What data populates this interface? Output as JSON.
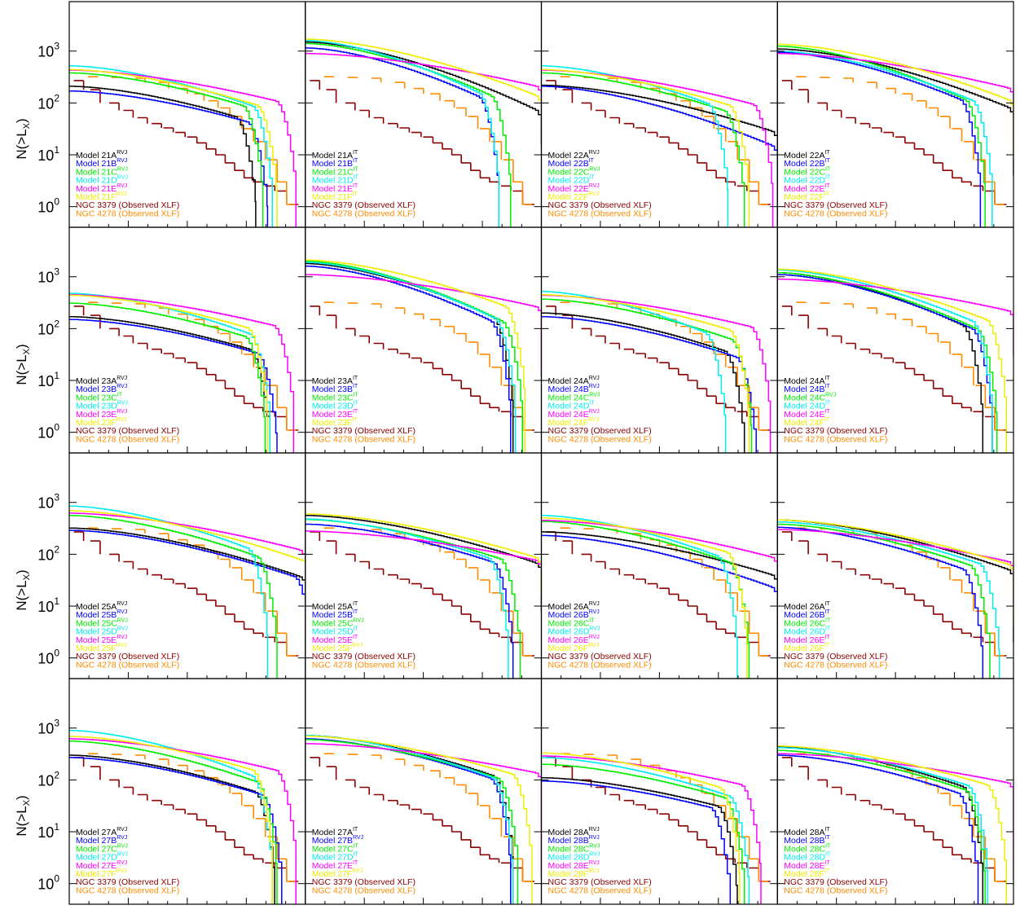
{
  "y_axis_label": {
    "main": "N(>L",
    "sub": "X",
    "close": ")"
  },
  "y_tick_labels": [
    {
      "base": "10",
      "exp": "3",
      "value": 1000
    },
    {
      "base": "10",
      "exp": "2",
      "value": 100
    },
    {
      "base": "10",
      "exp": "1",
      "value": 10
    },
    {
      "base": "10",
      "exp": "0",
      "value": 1
    }
  ],
  "series_colors": {
    "A": "#000000",
    "B": "#0000ff",
    "C": "#00ee00",
    "D": "#00eeee",
    "E": "#ff00ff",
    "F": "#eeee00",
    "ngc3379": "#8b0000",
    "ngc4278": "#ff8c00"
  },
  "observed_labels": {
    "ngc3379": "NGC 3379 (Observed XLF)",
    "ngc4278": "NGC 4278 (Observed XLF)"
  },
  "chart_data": {
    "type": "line",
    "layout": "grid 4x4",
    "yscale": "log",
    "ylim": [
      0.4,
      9000
    ],
    "xlim": [
      0,
      1
    ],
    "x_tick_labels_visible": false,
    "observed": {
      "ngc3379": {
        "x": [
          0.04,
          0.11,
          0.19,
          0.25,
          0.31,
          0.37,
          0.42,
          0.47,
          0.52,
          0.56,
          0.6,
          0.64,
          0.68,
          0.72,
          0.76,
          0.8,
          0.85,
          0.9,
          0.95
        ],
        "y": [
          270,
          180,
          100,
          72,
          52,
          40,
          33,
          27,
          22,
          17,
          13,
          10,
          7,
          5,
          3.6,
          3,
          2.5,
          2,
          1.1
        ]
      },
      "ngc4278": {
        "x": [
          0.1,
          0.2,
          0.3,
          0.4,
          0.48,
          0.55,
          0.61,
          0.66,
          0.71,
          0.76,
          0.81,
          0.86,
          0.9,
          0.94
        ],
        "y": [
          320,
          310,
          300,
          250,
          190,
          150,
          110,
          80,
          55,
          32,
          18,
          8,
          3,
          1.1
        ]
      }
    },
    "panels": [
      {
        "group": "21",
        "A": "RVJ",
        "B": "RVJ",
        "C": "RVJ",
        "D": "RVJ",
        "E": "RVJ",
        "F": "RVJ",
        "curves": [
          {
            "key": "A",
            "y0": 210,
            "tail": 1.6,
            "drop": 0.79,
            "knee": 0.9
          },
          {
            "key": "B",
            "y0": 170,
            "tail": 1.5,
            "drop": 0.84,
            "knee": 0.92
          },
          {
            "key": "C",
            "y0": 380,
            "tail": 1.6,
            "drop": 0.82,
            "knee": 0.9
          },
          {
            "key": "D",
            "y0": 520,
            "tail": 1.8,
            "drop": 0.86,
            "knee": 0.9
          },
          {
            "key": "E",
            "y0": 430,
            "tail": 1.2,
            "drop": 0.96,
            "knee": 0.93
          },
          {
            "key": "F",
            "y0": 440,
            "tail": 1.4,
            "drop": 0.88,
            "knee": 0.85
          }
        ]
      },
      {
        "group": "21",
        "A": "IT",
        "B": "IT",
        "C": "IT",
        "D": "IT",
        "E": "IT",
        "F": "IT",
        "curves": [
          {
            "key": "A",
            "y0": 1500,
            "tail": 2.1,
            "drop": 1.06,
            "knee": 0.9,
            "floor": 16
          },
          {
            "key": "B",
            "y0": 1150,
            "tail": 2.3,
            "drop": 0.82,
            "knee": 0.88
          },
          {
            "key": "C",
            "y0": 1400,
            "tail": 2.2,
            "drop": 0.87,
            "knee": 0.88
          },
          {
            "key": "D",
            "y0": 1600,
            "tail": 2.2,
            "drop": 0.82,
            "knee": 0.82
          },
          {
            "key": "E",
            "y0": 900,
            "tail": 1.1,
            "drop": 1.06,
            "knee": 0.95,
            "floor": 40
          },
          {
            "key": "F",
            "y0": 1700,
            "tail": 1.9,
            "drop": 1.06,
            "knee": 0.95,
            "floor": 38
          }
        ]
      },
      {
        "group": "22",
        "A": "RVJ",
        "B": "IT",
        "C": "RVJ",
        "D": "IT",
        "E": "RVJ",
        "F": "RVJ",
        "curves": [
          {
            "key": "A",
            "y0": 220,
            "tail": 1.5,
            "drop": 1.06,
            "knee": 0.93,
            "floor": 8
          },
          {
            "key": "B",
            "y0": 210,
            "tail": 2.0,
            "drop": 1.06,
            "knee": 0.95,
            "floor": 0.45
          },
          {
            "key": "C",
            "y0": 380,
            "tail": 1.7,
            "drop": 0.86,
            "knee": 0.9
          },
          {
            "key": "D",
            "y0": 520,
            "tail": 1.8,
            "drop": 0.79,
            "knee": 0.85
          },
          {
            "key": "E",
            "y0": 430,
            "tail": 1.3,
            "drop": 0.98,
            "knee": 0.94
          },
          {
            "key": "F",
            "y0": 440,
            "tail": 1.4,
            "drop": 0.88,
            "knee": 0.85
          }
        ]
      },
      {
        "group": "22",
        "A": "IT",
        "B": "IT",
        "C": "IT",
        "D": "IT",
        "E": "IT",
        "F": "IT",
        "curves": [
          {
            "key": "A",
            "y0": 1100,
            "tail": 2.0,
            "drop": 1.06,
            "knee": 0.96,
            "floor": 4
          },
          {
            "key": "B",
            "y0": 950,
            "tail": 2.2,
            "drop": 0.86,
            "knee": 0.92
          },
          {
            "key": "C",
            "y0": 1250,
            "tail": 2.3,
            "drop": 0.88,
            "knee": 0.9
          },
          {
            "key": "D",
            "y0": 1000,
            "tail": 2.0,
            "drop": 0.91,
            "knee": 0.9
          },
          {
            "key": "E",
            "y0": 900,
            "tail": 1.2,
            "drop": 1.06,
            "knee": 0.97,
            "floor": 16
          },
          {
            "key": "F",
            "y0": 1350,
            "tail": 1.9,
            "drop": 1.06,
            "knee": 0.96,
            "floor": 8
          }
        ]
      },
      {
        "group": "23",
        "A": "RVJ",
        "B": "RVJ",
        "C": "IT",
        "D": "RVJ",
        "E": "RVJ",
        "F": "RVJ",
        "curves": [
          {
            "key": "A",
            "y0": 170,
            "tail": 1.5,
            "drop": 0.85,
            "knee": 0.9
          },
          {
            "key": "B",
            "y0": 150,
            "tail": 1.5,
            "drop": 0.88,
            "knee": 0.92
          },
          {
            "key": "C",
            "y0": 310,
            "tail": 1.6,
            "drop": 0.83,
            "knee": 0.9
          },
          {
            "key": "D",
            "y0": 480,
            "tail": 1.8,
            "drop": 0.85,
            "knee": 0.88
          },
          {
            "key": "E",
            "y0": 450,
            "tail": 1.2,
            "drop": 0.95,
            "knee": 0.92
          },
          {
            "key": "F",
            "y0": 440,
            "tail": 1.4,
            "drop": 0.84,
            "knee": 0.85
          }
        ]
      },
      {
        "group": "23",
        "A": "IT",
        "B": "IT",
        "C": "IT",
        "D": "IT",
        "E": "IT",
        "F": "IT",
        "curves": [
          {
            "key": "A",
            "y0": 1800,
            "tail": 2.3,
            "drop": 0.88,
            "knee": 0.9
          },
          {
            "key": "B",
            "y0": 1600,
            "tail": 2.4,
            "drop": 0.87,
            "knee": 0.9
          },
          {
            "key": "C",
            "y0": 2000,
            "tail": 2.4,
            "drop": 0.92,
            "knee": 0.9
          },
          {
            "key": "D",
            "y0": 1900,
            "tail": 2.3,
            "drop": 0.89,
            "knee": 0.88
          },
          {
            "key": "E",
            "y0": 1100,
            "tail": 1.1,
            "drop": 1.06,
            "knee": 0.96,
            "floor": 12
          },
          {
            "key": "F",
            "y0": 2100,
            "tail": 1.8,
            "drop": 0.93,
            "knee": 0.9
          }
        ]
      },
      {
        "group": "24",
        "A": "RVJ",
        "B": "RVJ",
        "C": "RVJ",
        "D": "IT",
        "E": "RVJ",
        "F": "RVJ",
        "curves": [
          {
            "key": "A",
            "y0": 200,
            "tail": 1.7,
            "drop": 0.86,
            "knee": 0.9
          },
          {
            "key": "B",
            "y0": 170,
            "tail": 1.7,
            "drop": 0.91,
            "knee": 0.92
          },
          {
            "key": "C",
            "y0": 370,
            "tail": 1.7,
            "drop": 0.89,
            "knee": 0.9
          },
          {
            "key": "D",
            "y0": 520,
            "tail": 1.9,
            "drop": 0.78,
            "knee": 0.82
          },
          {
            "key": "E",
            "y0": 440,
            "tail": 1.2,
            "drop": 0.97,
            "knee": 0.93
          },
          {
            "key": "F",
            "y0": 450,
            "tail": 1.4,
            "drop": 0.88,
            "knee": 0.86
          }
        ]
      },
      {
        "group": "24",
        "A": "IT",
        "B": "IT",
        "C": "RVJ",
        "D": "IT",
        "E": "IT",
        "F": "IT",
        "curves": [
          {
            "key": "A",
            "y0": 1200,
            "tail": 2.4,
            "drop": 0.87,
            "knee": 0.92
          },
          {
            "key": "B",
            "y0": 1100,
            "tail": 2.2,
            "drop": 0.91,
            "knee": 0.9
          },
          {
            "key": "C",
            "y0": 1200,
            "tail": 2.2,
            "drop": 0.93,
            "knee": 0.9
          },
          {
            "key": "D",
            "y0": 1350,
            "tail": 2.0,
            "drop": 0.91,
            "knee": 0.88
          },
          {
            "key": "E",
            "y0": 900,
            "tail": 1.1,
            "drop": 1.06,
            "knee": 0.97,
            "floor": 30
          },
          {
            "key": "F",
            "y0": 1400,
            "tail": 1.9,
            "drop": 0.97,
            "knee": 0.92
          }
        ]
      },
      {
        "group": "25",
        "A": "RVJ",
        "B": "RVJ",
        "C": "RVJ",
        "D": "RVJ",
        "E": "RVJ",
        "F": "RVJ",
        "curves": [
          {
            "key": "A",
            "y0": 320,
            "tail": 1.5,
            "drop": 1.06,
            "knee": 0.9,
            "floor": 32
          },
          {
            "key": "B",
            "y0": 290,
            "tail": 1.6,
            "drop": 1.04,
            "knee": 0.94
          },
          {
            "key": "C",
            "y0": 560,
            "tail": 1.7,
            "drop": 0.88,
            "knee": 0.88
          },
          {
            "key": "D",
            "y0": 850,
            "tail": 1.8,
            "drop": 0.84,
            "knee": 0.85
          },
          {
            "key": "E",
            "y0": 620,
            "tail": 1.2,
            "drop": 1.06,
            "knee": 0.93,
            "floor": 70
          },
          {
            "key": "F",
            "y0": 690,
            "tail": 1.4,
            "drop": 1.06,
            "knee": 0.86,
            "floor": 75
          }
        ]
      },
      {
        "group": "25",
        "A": "IT",
        "B": "IT",
        "C": "RVJ",
        "D": "IT",
        "E": "IT",
        "F": "RVJ",
        "curves": [
          {
            "key": "A",
            "y0": 560,
            "tail": 1.6,
            "drop": 1.06,
            "knee": 0.95,
            "floor": 8
          },
          {
            "key": "B",
            "y0": 380,
            "tail": 1.7,
            "drop": 0.88,
            "knee": 0.92
          },
          {
            "key": "C",
            "y0": 470,
            "tail": 1.6,
            "drop": 0.91,
            "knee": 0.9
          },
          {
            "key": "D",
            "y0": 480,
            "tail": 1.6,
            "drop": 0.86,
            "knee": 0.85
          },
          {
            "key": "E",
            "y0": 280,
            "tail": 1.0,
            "drop": 1.06,
            "knee": 0.96,
            "floor": 40
          },
          {
            "key": "F",
            "y0": 600,
            "tail": 1.4,
            "drop": 1.06,
            "knee": 0.92,
            "floor": 16
          }
        ]
      },
      {
        "group": "26",
        "A": "RVJ",
        "B": "RVJ",
        "C": "IT",
        "D": "RVJ",
        "E": "RVJ",
        "F": "RVJ",
        "curves": [
          {
            "key": "A",
            "y0": 270,
            "tail": 1.4,
            "drop": 1.06,
            "knee": 0.93,
            "floor": 9
          },
          {
            "key": "B",
            "y0": 230,
            "tail": 1.8,
            "drop": 1.06,
            "knee": 0.97,
            "floor": 0.4
          },
          {
            "key": "C",
            "y0": 430,
            "tail": 1.7,
            "drop": 0.88,
            "knee": 0.88
          },
          {
            "key": "D",
            "y0": 560,
            "tail": 1.8,
            "drop": 0.83,
            "knee": 0.86
          },
          {
            "key": "E",
            "y0": 450,
            "tail": 1.2,
            "drop": 1.06,
            "knee": 0.93,
            "floor": 18
          },
          {
            "key": "F",
            "y0": 500,
            "tail": 1.4,
            "drop": 0.87,
            "knee": 0.86
          }
        ]
      },
      {
        "group": "26",
        "A": "IT",
        "B": "IT",
        "C": "IT",
        "D": "IT",
        "E": "IT",
        "F": "IT",
        "curves": [
          {
            "key": "A",
            "y0": 460,
            "tail": 1.7,
            "drop": 1.06,
            "knee": 0.96,
            "floor": 2
          },
          {
            "key": "B",
            "y0": 330,
            "tail": 1.9,
            "drop": 0.87,
            "knee": 0.92
          },
          {
            "key": "C",
            "y0": 380,
            "tail": 1.7,
            "drop": 0.9,
            "knee": 0.9
          },
          {
            "key": "D",
            "y0": 420,
            "tail": 1.6,
            "drop": 0.94,
            "knee": 0.9
          },
          {
            "key": "E",
            "y0": 300,
            "tail": 1.1,
            "drop": 1.06,
            "knee": 0.96,
            "floor": 10
          },
          {
            "key": "F",
            "y0": 460,
            "tail": 1.5,
            "drop": 1.06,
            "knee": 0.95,
            "floor": 4
          }
        ]
      },
      {
        "group": "27",
        "A": "RVJ",
        "B": "RVJ",
        "C": "RVJ",
        "D": "RVJ",
        "E": "RVJ",
        "F": "RVJ",
        "curves": [
          {
            "key": "A",
            "y0": 300,
            "tail": 1.6,
            "drop": 0.87,
            "knee": 0.9
          },
          {
            "key": "B",
            "y0": 270,
            "tail": 1.6,
            "drop": 0.9,
            "knee": 0.92
          },
          {
            "key": "C",
            "y0": 560,
            "tail": 1.7,
            "drop": 0.88,
            "knee": 0.88
          },
          {
            "key": "D",
            "y0": 900,
            "tail": 1.9,
            "drop": 0.86,
            "knee": 0.86
          },
          {
            "key": "E",
            "y0": 620,
            "tail": 1.2,
            "drop": 0.96,
            "knee": 0.92
          },
          {
            "key": "F",
            "y0": 690,
            "tail": 1.4,
            "drop": 0.86,
            "knee": 0.86
          }
        ]
      },
      {
        "group": "27",
        "A": "IT",
        "B": "RVJ",
        "C": "IT",
        "D": "IT",
        "E": "IT",
        "F": "RVJ",
        "curves": [
          {
            "key": "A",
            "y0": 720,
            "tail": 1.8,
            "drop": 0.88,
            "knee": 0.92
          },
          {
            "key": "B",
            "y0": 620,
            "tail": 1.8,
            "drop": 0.87,
            "knee": 0.92
          },
          {
            "key": "C",
            "y0": 600,
            "tail": 1.6,
            "drop": 0.9,
            "knee": 0.9
          },
          {
            "key": "D",
            "y0": 720,
            "tail": 1.7,
            "drop": 0.88,
            "knee": 0.86
          },
          {
            "key": "E",
            "y0": 500,
            "tail": 1.0,
            "drop": 1.06,
            "knee": 0.96,
            "floor": 1.3
          },
          {
            "key": "F",
            "y0": 700,
            "tail": 1.4,
            "drop": 0.96,
            "knee": 0.9
          }
        ]
      },
      {
        "group": "28",
        "A": "RVJ",
        "B": "RVJ",
        "C": "RVJ",
        "D": "RVJ",
        "E": "RVJ",
        "F": "RVJ",
        "curves": [
          {
            "key": "A",
            "y0": 110,
            "tail": 1.4,
            "drop": 0.83,
            "knee": 0.92
          },
          {
            "key": "B",
            "y0": 95,
            "tail": 1.4,
            "drop": 0.8,
            "knee": 0.92
          },
          {
            "key": "C",
            "y0": 200,
            "tail": 1.5,
            "drop": 0.86,
            "knee": 0.9
          },
          {
            "key": "D",
            "y0": 270,
            "tail": 1.6,
            "drop": 0.88,
            "knee": 0.88
          },
          {
            "key": "E",
            "y0": 290,
            "tail": 1.2,
            "drop": 0.93,
            "knee": 0.94
          },
          {
            "key": "F",
            "y0": 330,
            "tail": 1.5,
            "drop": 0.84,
            "knee": 0.86
          }
        ]
      },
      {
        "group": "28",
        "A": "IT",
        "B": "IT",
        "C": "IT",
        "D": "IT",
        "E": "IT",
        "F": "IT",
        "curves": [
          {
            "key": "A",
            "y0": 430,
            "tail": 1.8,
            "drop": 0.87,
            "knee": 0.92
          },
          {
            "key": "B",
            "y0": 300,
            "tail": 1.8,
            "drop": 0.85,
            "knee": 0.92
          },
          {
            "key": "C",
            "y0": 370,
            "tail": 1.7,
            "drop": 0.88,
            "knee": 0.9
          },
          {
            "key": "D",
            "y0": 420,
            "tail": 1.6,
            "drop": 0.89,
            "knee": 0.9
          },
          {
            "key": "E",
            "y0": 320,
            "tail": 1.0,
            "drop": 1.06,
            "knee": 0.96,
            "floor": 1.2
          },
          {
            "key": "F",
            "y0": 450,
            "tail": 1.5,
            "drop": 0.97,
            "knee": 0.94
          }
        ]
      }
    ]
  }
}
